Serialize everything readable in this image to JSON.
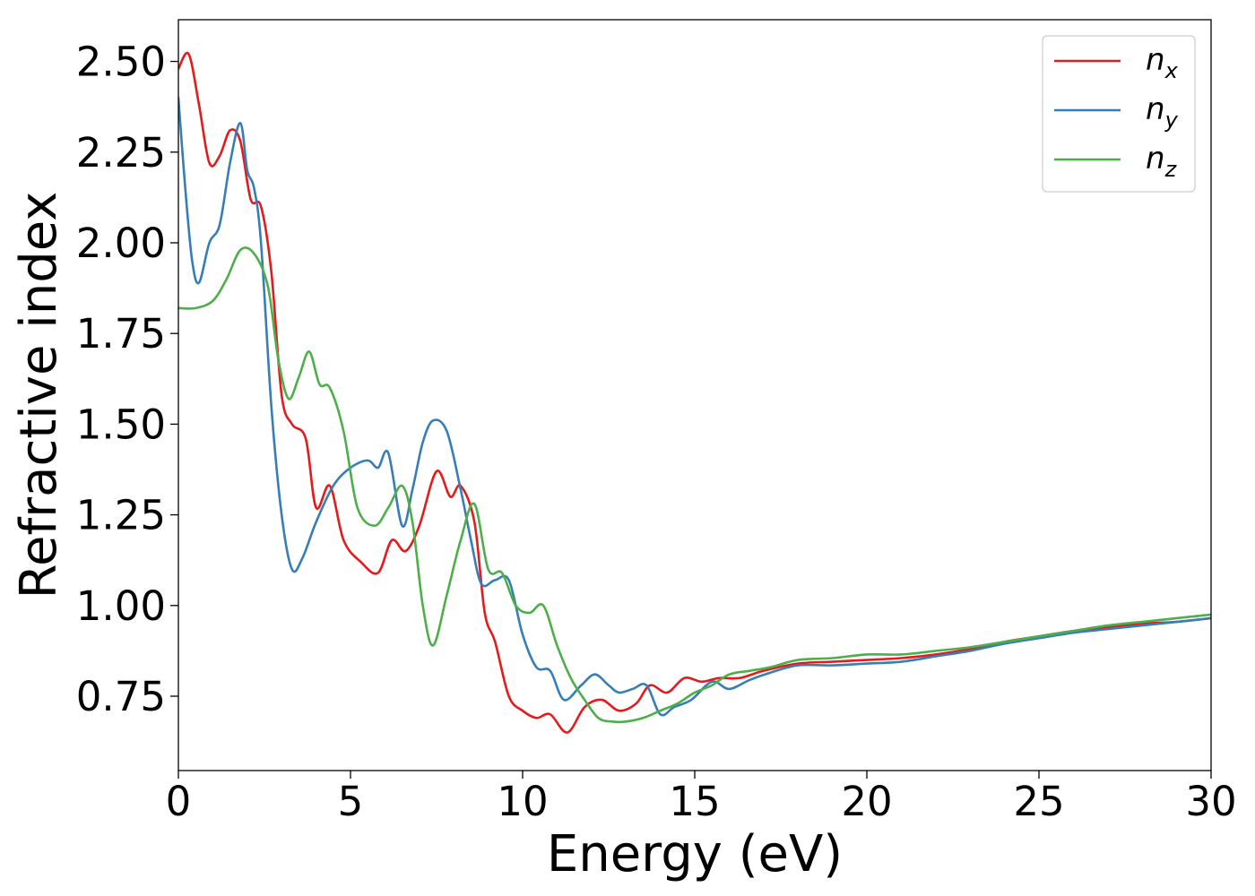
{
  "chart_data": {
    "type": "line",
    "title": "",
    "xlabel": "Energy (eV)",
    "ylabel": "Refractive index",
    "xlim": [
      0,
      30
    ],
    "ylim": [
      0.545,
      2.615
    ],
    "xticks": [
      0,
      5,
      10,
      15,
      20,
      25,
      30
    ],
    "xtick_labels": [
      "0",
      "5",
      "10",
      "15",
      "20",
      "25",
      "30"
    ],
    "yticks": [
      0.75,
      1.0,
      1.25,
      1.5,
      1.75,
      2.0,
      2.25,
      2.5
    ],
    "ytick_labels": [
      "0.75",
      "1.00",
      "1.25",
      "1.50",
      "1.75",
      "2.00",
      "2.25",
      "2.50"
    ],
    "grid": false,
    "legend_position": "top-right",
    "series": [
      {
        "name": "n",
        "subscript": "x",
        "color": "#e41a1c",
        "x": [
          0.0,
          0.3,
          0.6,
          0.9,
          1.2,
          1.5,
          1.8,
          2.1,
          2.4,
          2.7,
          3.0,
          3.3,
          3.7,
          4.0,
          4.4,
          4.8,
          5.3,
          5.8,
          6.2,
          6.6,
          7.0,
          7.5,
          7.9,
          8.2,
          8.6,
          8.9,
          9.2,
          9.6,
          10.0,
          10.4,
          10.8,
          11.3,
          11.8,
          12.3,
          12.8,
          13.3,
          13.7,
          14.2,
          14.7,
          15.2,
          15.7,
          16.3,
          17.0,
          18.0,
          19.0,
          20.0,
          21.0,
          22.0,
          23.0,
          24.0,
          25.0,
          26.0,
          27.0,
          28.0,
          29.0,
          30.0
        ],
        "y": [
          2.48,
          2.52,
          2.38,
          2.22,
          2.24,
          2.31,
          2.28,
          2.12,
          2.1,
          1.92,
          1.58,
          1.5,
          1.46,
          1.27,
          1.33,
          1.18,
          1.12,
          1.09,
          1.18,
          1.15,
          1.22,
          1.37,
          1.3,
          1.33,
          1.23,
          0.98,
          0.9,
          0.75,
          0.71,
          0.69,
          0.7,
          0.65,
          0.72,
          0.74,
          0.71,
          0.73,
          0.78,
          0.76,
          0.8,
          0.79,
          0.8,
          0.8,
          0.82,
          0.84,
          0.845,
          0.85,
          0.855,
          0.865,
          0.88,
          0.9,
          0.915,
          0.93,
          0.94,
          0.95,
          0.955,
          0.965
        ]
      },
      {
        "name": "n",
        "subscript": "y",
        "color": "#377eb8",
        "x": [
          0.0,
          0.2,
          0.4,
          0.6,
          0.9,
          1.2,
          1.5,
          1.8,
          2.0,
          2.2,
          2.4,
          2.7,
          3.0,
          3.3,
          3.6,
          4.0,
          4.5,
          5.0,
          5.5,
          5.8,
          6.1,
          6.5,
          6.8,
          7.1,
          7.4,
          7.8,
          8.2,
          8.5,
          8.8,
          9.2,
          9.6,
          10.0,
          10.4,
          10.8,
          11.2,
          11.7,
          12.1,
          12.5,
          12.8,
          13.2,
          13.6,
          14.0,
          14.4,
          14.9,
          15.5,
          16.0,
          16.6,
          17.2,
          18.0,
          19.0,
          20.0,
          21.0,
          22.0,
          23.0,
          24.0,
          25.0,
          26.0,
          27.0,
          28.0,
          29.0,
          30.0
        ],
        "y": [
          2.4,
          2.15,
          1.95,
          1.89,
          2.0,
          2.05,
          2.22,
          2.33,
          2.2,
          2.15,
          2.0,
          1.55,
          1.25,
          1.1,
          1.13,
          1.23,
          1.33,
          1.38,
          1.4,
          1.38,
          1.42,
          1.22,
          1.32,
          1.45,
          1.51,
          1.48,
          1.32,
          1.18,
          1.06,
          1.07,
          1.07,
          0.92,
          0.83,
          0.82,
          0.74,
          0.78,
          0.81,
          0.78,
          0.76,
          0.77,
          0.78,
          0.7,
          0.72,
          0.74,
          0.79,
          0.77,
          0.795,
          0.815,
          0.835,
          0.835,
          0.84,
          0.845,
          0.86,
          0.875,
          0.895,
          0.91,
          0.925,
          0.935,
          0.945,
          0.955,
          0.965
        ]
      },
      {
        "name": "n",
        "subscript": "z",
        "color": "#4daf4a",
        "x": [
          0.0,
          0.5,
          1.0,
          1.4,
          1.8,
          2.2,
          2.6,
          2.9,
          3.2,
          3.5,
          3.8,
          4.1,
          4.4,
          4.8,
          5.2,
          5.7,
          6.1,
          6.5,
          6.8,
          7.1,
          7.4,
          7.8,
          8.2,
          8.6,
          9.0,
          9.4,
          9.8,
          10.2,
          10.6,
          11.0,
          11.4,
          11.8,
          12.2,
          12.6,
          13.0,
          13.5,
          14.0,
          14.5,
          15.0,
          15.5,
          16.0,
          16.6,
          17.2,
          18.0,
          19.0,
          20.0,
          21.0,
          22.0,
          23.0,
          24.0,
          25.0,
          26.0,
          27.0,
          28.0,
          29.0,
          30.0
        ],
        "y": [
          1.82,
          1.82,
          1.84,
          1.9,
          1.98,
          1.97,
          1.88,
          1.68,
          1.57,
          1.63,
          1.7,
          1.61,
          1.6,
          1.48,
          1.27,
          1.22,
          1.27,
          1.33,
          1.23,
          1.0,
          0.89,
          1.03,
          1.18,
          1.28,
          1.1,
          1.09,
          1.0,
          0.98,
          1.0,
          0.89,
          0.8,
          0.74,
          0.69,
          0.68,
          0.68,
          0.69,
          0.71,
          0.73,
          0.76,
          0.78,
          0.81,
          0.82,
          0.83,
          0.85,
          0.855,
          0.865,
          0.865,
          0.875,
          0.885,
          0.9,
          0.915,
          0.93,
          0.945,
          0.955,
          0.965,
          0.975
        ]
      }
    ]
  }
}
